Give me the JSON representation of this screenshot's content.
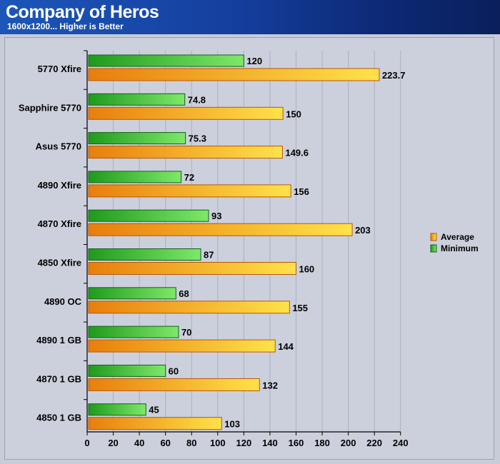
{
  "title": "Company of Heros",
  "subtitle": "1600x1200... Higher is Better",
  "colors": {
    "average_light": "#ffe24a",
    "average_dark": "#e87e0c",
    "minimum_light": "#7ee86a",
    "minimum_dark": "#1f9a1c",
    "header": "#1540a0"
  },
  "chart_data": {
    "type": "bar",
    "orientation": "horizontal",
    "categories": [
      "5770 Xfire",
      "Sapphire 5770",
      "Asus 5770",
      "4890 Xfire",
      "4870 Xfire",
      "4850 Xfire",
      "4890 OC",
      "4890 1 GB",
      "4870 1 GB",
      "4850 1 GB"
    ],
    "series": [
      {
        "name": "Minimum",
        "values": [
          120,
          74.8,
          75.3,
          72,
          93,
          87,
          68,
          70,
          60,
          45
        ]
      },
      {
        "name": "Average",
        "values": [
          223.7,
          150,
          149.6,
          156,
          203,
          160,
          155,
          144,
          132,
          103
        ]
      }
    ],
    "value_labels": {
      "Minimum": [
        "120",
        "74.8",
        "75.3",
        "72",
        "93",
        "87",
        "68",
        "70",
        "60",
        "45"
      ],
      "Average": [
        "223.7",
        "150",
        "149.6",
        "156",
        "203",
        "160",
        "155",
        "144",
        "132",
        "103"
      ]
    },
    "xlim": [
      0,
      240
    ],
    "xticks": [
      "0",
      "20",
      "40",
      "60",
      "80",
      "100",
      "120",
      "140",
      "160",
      "180",
      "200",
      "220",
      "240"
    ],
    "grid": true,
    "legend_position": "right",
    "legend": [
      "Average",
      "Minimum"
    ]
  }
}
